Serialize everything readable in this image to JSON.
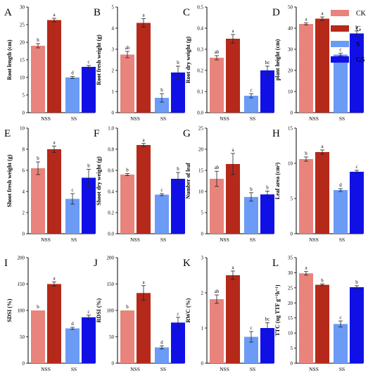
{
  "colors": {
    "CK": "#e8847c",
    "G": "#b5291a",
    "S": "#6b9bf5",
    "GS": "#1010e6"
  },
  "legend": [
    {
      "key": "CK",
      "label": "CK"
    },
    {
      "key": "G",
      "label": "G"
    },
    {
      "key": "S",
      "label": "S"
    },
    {
      "key": "GS",
      "label": "GS"
    }
  ],
  "chart_data": [
    {
      "id": "A",
      "type": "bar",
      "letter": "A",
      "ylabel": "Root length (cm)",
      "ylim": [
        0,
        30
      ],
      "yticks": [
        0,
        5,
        10,
        15,
        20,
        25,
        30
      ],
      "categories": [
        "NSS",
        "SS"
      ],
      "series": [
        {
          "key": "CK",
          "values": [
            19.0,
            null
          ],
          "errors": [
            0.6,
            null
          ],
          "letters": [
            "b",
            null
          ]
        },
        {
          "key": "G",
          "values": [
            26.3,
            null
          ],
          "errors": [
            0.5,
            null
          ],
          "letters": [
            "a",
            null
          ]
        },
        {
          "key": "S",
          "values": [
            null,
            10.0
          ],
          "errors": [
            null,
            0.3
          ],
          "letters": [
            null,
            "d"
          ]
        },
        {
          "key": "GS",
          "values": [
            null,
            13.0
          ],
          "errors": [
            null,
            0.4
          ],
          "letters": [
            null,
            "c"
          ]
        }
      ]
    },
    {
      "id": "B",
      "type": "bar",
      "letter": "B",
      "ylabel": "Root fresh weight (g)",
      "ylim": [
        0,
        5
      ],
      "yticks": [
        0,
        1,
        2,
        3,
        4,
        5
      ],
      "categories": [
        "NSS",
        "SS"
      ],
      "series": [
        {
          "key": "CK",
          "values": [
            2.75,
            null
          ],
          "errors": [
            0.15,
            null
          ],
          "letters": [
            "ab",
            null
          ]
        },
        {
          "key": "G",
          "values": [
            4.25,
            null
          ],
          "errors": [
            0.2,
            null
          ],
          "letters": [
            "a",
            null
          ]
        },
        {
          "key": "S",
          "values": [
            null,
            0.7
          ],
          "errors": [
            null,
            0.2
          ],
          "letters": [
            null,
            "b"
          ]
        },
        {
          "key": "GS",
          "values": [
            null,
            1.9
          ],
          "errors": [
            null,
            0.3
          ],
          "letters": [
            null,
            "b"
          ]
        }
      ]
    },
    {
      "id": "C",
      "type": "bar",
      "letter": "C",
      "ylabel": "Root dry weight (g)",
      "ylim": [
        0,
        0.5
      ],
      "yticks": [
        0.0,
        0.1,
        0.2,
        0.3,
        0.4,
        0.5
      ],
      "categories": [
        "NSS",
        "SS"
      ],
      "series": [
        {
          "key": "CK",
          "values": [
            0.26,
            null
          ],
          "errors": [
            0.01,
            null
          ],
          "letters": [
            "ab",
            null
          ]
        },
        {
          "key": "G",
          "values": [
            0.35,
            null
          ],
          "errors": [
            0.02,
            null
          ],
          "letters": [
            "a",
            null
          ]
        },
        {
          "key": "S",
          "values": [
            null,
            0.08
          ],
          "errors": [
            null,
            0.01
          ],
          "letters": [
            null,
            "c"
          ]
        },
        {
          "key": "GS",
          "values": [
            null,
            0.2
          ],
          "errors": [
            null,
            0.02
          ],
          "letters": [
            null,
            "bc"
          ]
        }
      ]
    },
    {
      "id": "D",
      "type": "bar",
      "letter": "D",
      "ylabel": "plant height (cm)",
      "ylim": [
        0,
        50
      ],
      "yticks": [
        0,
        10,
        20,
        30,
        40,
        50
      ],
      "categories": [
        "NSS",
        "SS"
      ],
      "series": [
        {
          "key": "CK",
          "values": [
            42.0,
            null
          ],
          "errors": [
            0.5,
            null
          ],
          "letters": [
            "a",
            null
          ]
        },
        {
          "key": "G",
          "values": [
            44.5,
            null
          ],
          "errors": [
            0.8,
            null
          ],
          "letters": [
            "a",
            null
          ]
        },
        {
          "key": "S",
          "values": [
            null,
            27.5
          ],
          "errors": [
            null,
            0.6
          ],
          "letters": [
            null,
            "c"
          ]
        },
        {
          "key": "GS",
          "values": [
            null,
            37.5
          ],
          "errors": [
            null,
            1.2
          ],
          "letters": [
            null,
            "b"
          ]
        }
      ]
    },
    {
      "id": "E",
      "type": "bar",
      "letter": "E",
      "ylabel": "Shoot fresh weight (g)",
      "ylim": [
        0,
        10
      ],
      "yticks": [
        0,
        2,
        4,
        6,
        8,
        10
      ],
      "categories": [
        "NSS",
        "SS"
      ],
      "series": [
        {
          "key": "CK",
          "values": [
            6.2,
            null
          ],
          "errors": [
            0.6,
            null
          ],
          "letters": [
            "b",
            null
          ]
        },
        {
          "key": "G",
          "values": [
            8.0,
            null
          ],
          "errors": [
            0.3,
            null
          ],
          "letters": [
            "a",
            null
          ]
        },
        {
          "key": "S",
          "values": [
            null,
            3.3
          ],
          "errors": [
            null,
            0.5
          ],
          "letters": [
            null,
            "c"
          ]
        },
        {
          "key": "GS",
          "values": [
            null,
            5.3
          ],
          "errors": [
            null,
            0.8
          ],
          "letters": [
            null,
            "b"
          ]
        }
      ]
    },
    {
      "id": "F",
      "type": "bar",
      "letter": "F",
      "ylabel": "Shoot dry weight (g)",
      "ylim": [
        0,
        1.0
      ],
      "yticks": [
        0.0,
        0.2,
        0.4,
        0.6,
        0.8,
        1.0
      ],
      "categories": [
        "NSS",
        "SS"
      ],
      "series": [
        {
          "key": "CK",
          "values": [
            0.56,
            null
          ],
          "errors": [
            0.01,
            null
          ],
          "letters": [
            "b",
            null
          ]
        },
        {
          "key": "G",
          "values": [
            0.84,
            null
          ],
          "errors": [
            0.015,
            null
          ],
          "letters": [
            "a",
            null
          ]
        },
        {
          "key": "S",
          "values": [
            null,
            0.37
          ],
          "errors": [
            null,
            0.01
          ],
          "letters": [
            null,
            "c"
          ]
        },
        {
          "key": "GS",
          "values": [
            null,
            0.52
          ],
          "errors": [
            null,
            0.06
          ],
          "letters": [
            null,
            "b"
          ]
        }
      ]
    },
    {
      "id": "G",
      "type": "bar",
      "letter": "G",
      "ylabel": "Number of leaf",
      "ylim": [
        0,
        25
      ],
      "yticks": [
        0,
        5,
        10,
        15,
        20,
        25
      ],
      "categories": [
        "NSS",
        "SS"
      ],
      "series": [
        {
          "key": "CK",
          "values": [
            13.0,
            null
          ],
          "errors": [
            1.8,
            null
          ],
          "letters": [
            "ab",
            null
          ]
        },
        {
          "key": "G",
          "values": [
            16.5,
            null
          ],
          "errors": [
            2.5,
            null
          ],
          "letters": [
            "a",
            null
          ]
        },
        {
          "key": "S",
          "values": [
            null,
            8.7
          ],
          "errors": [
            null,
            1.0
          ],
          "letters": [
            null,
            "b"
          ]
        },
        {
          "key": "GS",
          "values": [
            null,
            9.3
          ],
          "errors": [
            null,
            0.8
          ],
          "letters": [
            null,
            "b"
          ]
        }
      ]
    },
    {
      "id": "H",
      "type": "bar",
      "letter": "H",
      "ylabel": "Leaf area (cm²)",
      "ylim": [
        0,
        15
      ],
      "yticks": [
        0,
        5,
        10,
        15
      ],
      "categories": [
        "NSS",
        "SS"
      ],
      "series": [
        {
          "key": "CK",
          "values": [
            10.6,
            null
          ],
          "errors": [
            0.3,
            null
          ],
          "letters": [
            "b",
            null
          ]
        },
        {
          "key": "G",
          "values": [
            11.6,
            null
          ],
          "errors": [
            0.3,
            null
          ],
          "letters": [
            "a",
            null
          ]
        },
        {
          "key": "S",
          "values": [
            null,
            6.2
          ],
          "errors": [
            null,
            0.2
          ],
          "letters": [
            null,
            "d"
          ]
        },
        {
          "key": "GS",
          "values": [
            null,
            8.8
          ],
          "errors": [
            null,
            0.2
          ],
          "letters": [
            null,
            "c"
          ]
        }
      ]
    },
    {
      "id": "I",
      "type": "bar",
      "letter": "I",
      "ylabel": "SDSI (%)",
      "ylim": [
        0,
        200
      ],
      "yticks": [
        0,
        50,
        100,
        150,
        200
      ],
      "categories": [
        "NSS",
        "SS"
      ],
      "series": [
        {
          "key": "CK",
          "values": [
            100,
            null
          ],
          "errors": [
            null,
            null
          ],
          "letters": [
            "b",
            null
          ]
        },
        {
          "key": "G",
          "values": [
            150,
            null
          ],
          "errors": [
            4,
            null
          ],
          "letters": [
            "a",
            null
          ]
        },
        {
          "key": "S",
          "values": [
            null,
            66
          ],
          "errors": [
            null,
            2
          ],
          "letters": [
            null,
            "d"
          ]
        },
        {
          "key": "GS",
          "values": [
            null,
            87
          ],
          "errors": [
            null,
            4
          ],
          "letters": [
            null,
            "c"
          ]
        }
      ]
    },
    {
      "id": "J",
      "type": "bar",
      "letter": "J",
      "ylabel": "RDSI (%)",
      "ylim": [
        0,
        200
      ],
      "yticks": [
        0,
        50,
        100,
        150,
        200
      ],
      "categories": [
        "NSS",
        "SS"
      ],
      "series": [
        {
          "key": "CK",
          "values": [
            100,
            null
          ],
          "errors": [
            null,
            null
          ],
          "letters": [
            "b",
            null
          ]
        },
        {
          "key": "G",
          "values": [
            133,
            null
          ],
          "errors": [
            14,
            null
          ],
          "letters": [
            "a",
            null
          ]
        },
        {
          "key": "S",
          "values": [
            null,
            30
          ],
          "errors": [
            null,
            3
          ],
          "letters": [
            null,
            "d"
          ]
        },
        {
          "key": "GS",
          "values": [
            null,
            77
          ],
          "errors": [
            null,
            10
          ],
          "letters": [
            null,
            "c"
          ]
        }
      ]
    },
    {
      "id": "K",
      "type": "bar",
      "letter": "K",
      "ylabel": "RWC (%)",
      "ylim": [
        0,
        3
      ],
      "yticks": [
        0,
        1,
        2,
        3
      ],
      "categories": [
        "NSS",
        "SS"
      ],
      "series": [
        {
          "key": "CK",
          "values": [
            1.82,
            null
          ],
          "errors": [
            0.12,
            null
          ],
          "letters": [
            "ab",
            null
          ]
        },
        {
          "key": "G",
          "values": [
            2.5,
            null
          ],
          "errors": [
            0.12,
            null
          ],
          "letters": [
            "a",
            null
          ]
        },
        {
          "key": "S",
          "values": [
            null,
            0.75
          ],
          "errors": [
            null,
            0.15
          ],
          "letters": [
            null,
            "c"
          ]
        },
        {
          "key": "GS",
          "values": [
            null,
            1.0
          ],
          "errors": [
            null,
            0.15
          ],
          "letters": [
            null,
            "bc"
          ]
        }
      ]
    },
    {
      "id": "L",
      "type": "bar",
      "letter": "L",
      "ylabel": "TTC (ug TTF g⁻¹h⁻¹)",
      "ylim": [
        0,
        35
      ],
      "yticks": [
        0,
        5,
        10,
        15,
        20,
        25,
        30,
        35
      ],
      "categories": [
        "NSS",
        "SS"
      ],
      "series": [
        {
          "key": "CK",
          "values": [
            29.8,
            null
          ],
          "errors": [
            0.6,
            null
          ],
          "letters": [
            "a",
            null
          ]
        },
        {
          "key": "G",
          "values": [
            26.0,
            null
          ],
          "errors": [
            0.3,
            null
          ],
          "letters": [
            "b",
            null
          ]
        },
        {
          "key": "S",
          "values": [
            null,
            13.0
          ],
          "errors": [
            null,
            1.0
          ],
          "letters": [
            null,
            "c"
          ]
        },
        {
          "key": "GS",
          "values": [
            null,
            25.2
          ],
          "errors": [
            null,
            0.5
          ],
          "letters": [
            null,
            "b"
          ]
        }
      ]
    }
  ]
}
